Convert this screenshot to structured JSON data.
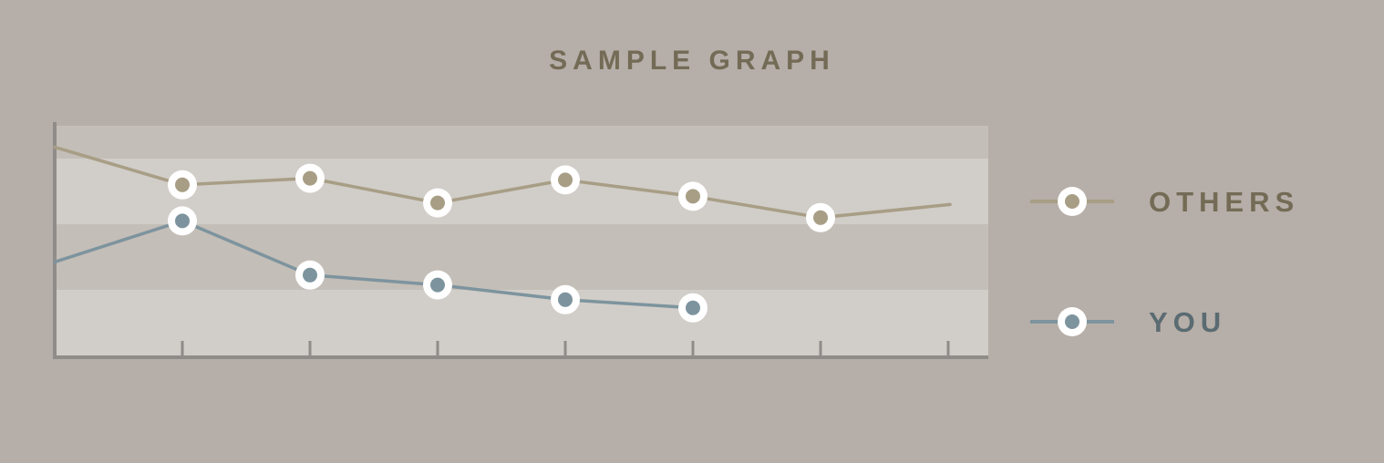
{
  "chart_data": {
    "type": "line",
    "title": "SAMPLE GRAPH",
    "xlabel": "",
    "ylabel": "",
    "x": [
      0,
      1,
      2,
      3,
      4,
      5,
      6,
      7
    ],
    "ylim": [
      0,
      7
    ],
    "grid": "horizontal bands",
    "legend_position": "right",
    "series": [
      {
        "name": "OTHERS",
        "color": "#a89e86",
        "marker_fill": "#a89e86",
        "values": [
          6.35,
          5.2,
          5.4,
          4.65,
          5.35,
          4.85,
          4.2,
          4.6
        ],
        "markers": [
          false,
          true,
          true,
          true,
          true,
          true,
          true,
          false
        ]
      },
      {
        "name": "YOU",
        "color": "#7d949e",
        "marker_fill": "#7d949e",
        "values": [
          2.85,
          4.1,
          2.45,
          2.15,
          1.7,
          1.45,
          null,
          null
        ],
        "markers": [
          false,
          true,
          true,
          true,
          true,
          true,
          false,
          false
        ]
      }
    ],
    "colors": {
      "background": "#b6aea8",
      "band_dark": "#c4beb8",
      "band_light": "#d1cdc8",
      "axis": "#8f8c89",
      "title": "#736b55",
      "others_label": "#736b55",
      "you_label": "#5a6b72"
    }
  }
}
